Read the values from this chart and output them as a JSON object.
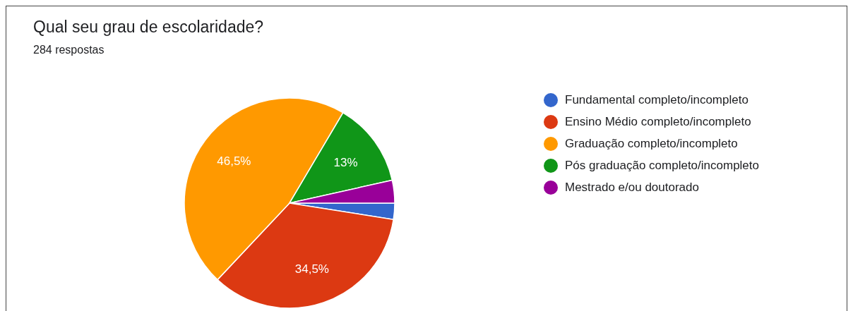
{
  "chart_data": {
    "type": "pie",
    "title": "Qual seu grau de escolaridade?",
    "subtitle": "284 respostas",
    "categories": [
      "Fundamental completo/incompleto",
      "Ensino Médio completo/incompleto",
      "Graduação completo/incompleto",
      "Pós graduação completo/incompleto",
      "Mestrado e/ou doutorado"
    ],
    "values": [
      2.5,
      34.5,
      46.5,
      13,
      3.5
    ],
    "colors": [
      "#3366cc",
      "#dc3912",
      "#ff9900",
      "#109618",
      "#990099"
    ],
    "value_labels": [
      null,
      "34,5%",
      "46,5%",
      "13%",
      null
    ],
    "legend": "right"
  }
}
